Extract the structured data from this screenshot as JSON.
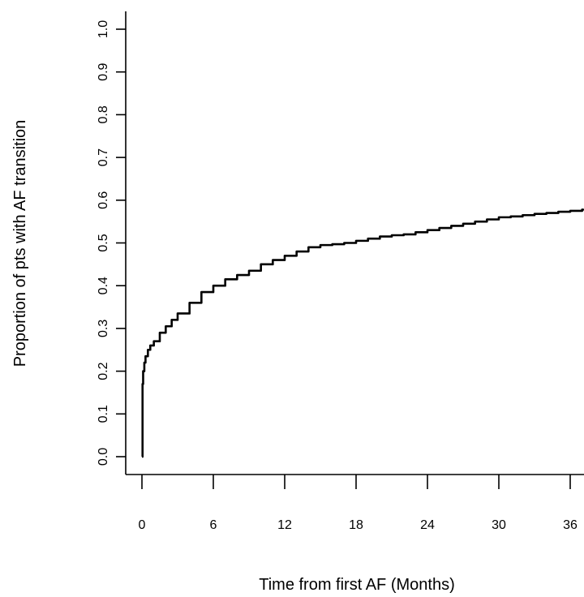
{
  "chart_data": {
    "type": "line",
    "title": "",
    "xlabel": "Time from first AF (Months)",
    "ylabel": "Proportion of pts with AF transition",
    "xlim": [
      0,
      37.5
    ],
    "ylim": [
      0,
      1
    ],
    "x_ticks": [
      0,
      6,
      12,
      18,
      24,
      30,
      36
    ],
    "x_tick_labels": [
      "0",
      "6",
      "12",
      "18",
      "24",
      "30",
      "36"
    ],
    "y_ticks": [
      0,
      0.1,
      0.2,
      0.3,
      0.4,
      0.5,
      0.6,
      0.7,
      0.8,
      0.9,
      1.0
    ],
    "y_tick_labels": [
      "0.0",
      "0.1",
      "0.2",
      "0.3",
      "0.4",
      "0.5",
      "0.6",
      "0.7",
      "0.8",
      "0.9",
      "1.0"
    ],
    "grid": false,
    "legend": "none",
    "series": [
      {
        "x": [
          0,
          0.05,
          0.1,
          0.2,
          0.3,
          0.5,
          0.7,
          1,
          1.5,
          2,
          2.5,
          3,
          4,
          5,
          6,
          7,
          8,
          9,
          10,
          11,
          12,
          13,
          14,
          15,
          16,
          17,
          18,
          19,
          20,
          21,
          22,
          23,
          24,
          25,
          26,
          27,
          28,
          29,
          30,
          31,
          32,
          33,
          34,
          35,
          36,
          37,
          37.5
        ],
        "y": [
          0,
          0.17,
          0.2,
          0.22,
          0.235,
          0.25,
          0.26,
          0.27,
          0.29,
          0.305,
          0.32,
          0.335,
          0.36,
          0.385,
          0.4,
          0.415,
          0.425,
          0.435,
          0.45,
          0.46,
          0.47,
          0.48,
          0.49,
          0.495,
          0.497,
          0.5,
          0.505,
          0.51,
          0.515,
          0.518,
          0.52,
          0.525,
          0.53,
          0.535,
          0.54,
          0.545,
          0.55,
          0.555,
          0.56,
          0.562,
          0.565,
          0.568,
          0.57,
          0.573,
          0.575,
          0.578,
          0.58
        ]
      }
    ]
  }
}
